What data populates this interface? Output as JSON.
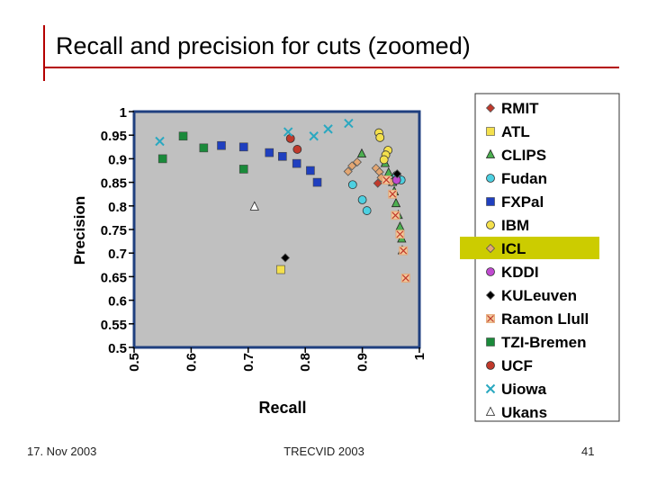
{
  "slide": {
    "title": "Recall and precision for cuts (zoomed)",
    "footer_left": "17. Nov 2003",
    "footer_center": "TRECVID 2003",
    "footer_right": "41"
  },
  "colors": {
    "accent_rule": "#b40000",
    "plot_background": "#c0c0c0",
    "plot_border": "#1f3f7f",
    "legend_highlight": "#cccc00"
  },
  "chart_data": {
    "type": "scatter",
    "xlabel": "Recall",
    "ylabel": "Precision",
    "xlim": [
      0.5,
      1
    ],
    "ylim": [
      0.5,
      1
    ],
    "x_ticks": [
      "0.5",
      "0.6",
      "0.7",
      "0.8",
      "0.9",
      "1"
    ],
    "y_ticks": [
      "1",
      "0.95",
      "0.9",
      "0.85",
      "0.8",
      "0.75",
      "0.7",
      "0.65",
      "0.6",
      "0.55",
      "0.5"
    ],
    "grid": false,
    "legend_position": "right",
    "legend_highlighted": "ICL",
    "series": [
      {
        "name": "RMIT",
        "marker": "diamond",
        "color": "#c0392b",
        "points": [
          [
            0.927,
            0.848
          ]
        ]
      },
      {
        "name": "ATL",
        "marker": "square",
        "color": "#f4e04d",
        "points": [
          [
            0.757,
            0.665
          ]
        ]
      },
      {
        "name": "CLIPS",
        "marker": "triangle",
        "color": "#4caf50",
        "points": [
          [
            0.899,
            0.91
          ],
          [
            0.94,
            0.89
          ],
          [
            0.946,
            0.87
          ],
          [
            0.953,
            0.85
          ],
          [
            0.956,
            0.83
          ],
          [
            0.959,
            0.805
          ],
          [
            0.963,
            0.78
          ],
          [
            0.966,
            0.755
          ],
          [
            0.969,
            0.73
          ],
          [
            0.97,
            0.705
          ]
        ]
      },
      {
        "name": "Fudan",
        "marker": "circle",
        "color": "#4dd0e1",
        "points": [
          [
            0.883,
            0.845
          ],
          [
            0.9,
            0.813
          ],
          [
            0.908,
            0.79
          ],
          [
            0.968,
            0.855
          ],
          [
            0.96,
            0.865
          ]
        ]
      },
      {
        "name": "FXPal",
        "marker": "square",
        "color": "#1f3fbf",
        "points": [
          [
            0.653,
            0.928
          ],
          [
            0.692,
            0.925
          ],
          [
            0.737,
            0.913
          ],
          [
            0.76,
            0.905
          ],
          [
            0.785,
            0.89
          ],
          [
            0.809,
            0.875
          ],
          [
            0.821,
            0.85
          ]
        ]
      },
      {
        "name": "IBM",
        "marker": "circle",
        "color": "#f4e04d",
        "points": [
          [
            0.929,
            0.955
          ],
          [
            0.931,
            0.945
          ],
          [
            0.945,
            0.918
          ],
          [
            0.941,
            0.908
          ],
          [
            0.938,
            0.898
          ]
        ]
      },
      {
        "name": "ICL",
        "marker": "diamond",
        "color": "#e3a672",
        "points": [
          [
            0.875,
            0.873
          ],
          [
            0.882,
            0.885
          ],
          [
            0.891,
            0.893
          ],
          [
            0.924,
            0.88
          ],
          [
            0.93,
            0.872
          ],
          [
            0.933,
            0.86
          ],
          [
            0.951,
            0.85
          ]
        ]
      },
      {
        "name": "KDDI",
        "marker": "circle",
        "color": "#c04ad0",
        "points": [
          [
            0.96,
            0.855
          ]
        ]
      },
      {
        "name": "KULeuven",
        "marker": "diamond",
        "color": "#000000",
        "points": [
          [
            0.765,
            0.69
          ],
          [
            0.961,
            0.868
          ]
        ]
      },
      {
        "name": "Ramon Llull",
        "marker": "x-square",
        "color": "#e3a672",
        "points": [
          [
            0.942,
            0.855
          ],
          [
            0.953,
            0.825
          ],
          [
            0.958,
            0.78
          ],
          [
            0.966,
            0.74
          ],
          [
            0.972,
            0.705
          ],
          [
            0.976,
            0.647
          ]
        ]
      },
      {
        "name": "TZI-Bremen",
        "marker": "square",
        "color": "#1a8a3a",
        "points": [
          [
            0.55,
            0.9
          ],
          [
            0.586,
            0.948
          ],
          [
            0.622,
            0.923
          ],
          [
            0.692,
            0.878
          ]
        ]
      },
      {
        "name": "UCF",
        "marker": "circle",
        "color": "#c0392b",
        "points": [
          [
            0.774,
            0.943
          ],
          [
            0.786,
            0.92
          ]
        ]
      },
      {
        "name": "Uiowa",
        "marker": "x",
        "color": "#2aa8c0",
        "points": [
          [
            0.545,
            0.937
          ],
          [
            0.77,
            0.957
          ],
          [
            0.815,
            0.948
          ],
          [
            0.84,
            0.963
          ],
          [
            0.876,
            0.975
          ]
        ]
      },
      {
        "name": "Ukans",
        "marker": "triangle-open",
        "color": "#ffffff",
        "points": [
          [
            0.711,
            0.798
          ]
        ]
      }
    ]
  }
}
